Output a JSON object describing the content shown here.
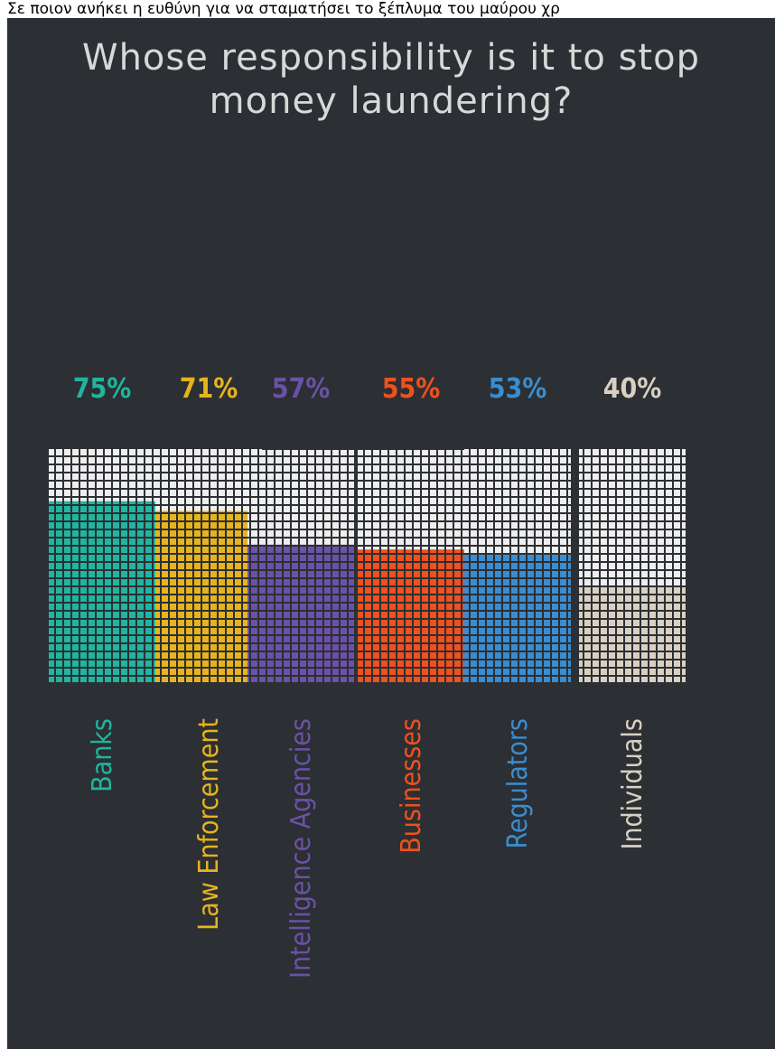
{
  "caption": "Σε ποιον ανήκει η ευθύνη για να σταματήσει το ξέπλυμα του μαύρου χρ",
  "chart_data": {
    "type": "bar",
    "title": "Whose responsibility is it to stop money laundering?",
    "categories": [
      "Banks",
      "Law Enforcement",
      "Intelligence Agencies",
      "Businesses",
      "Regulators",
      "Individuals"
    ],
    "values": [
      75,
      71,
      57,
      55,
      53,
      40
    ],
    "value_labels": [
      "75%",
      "71%",
      "57%",
      "55%",
      "53%",
      "40%"
    ],
    "colors": [
      "#1fb5a0",
      "#e6b41e",
      "#6a52a6",
      "#f0501e",
      "#3a8dd0",
      "#d9d0c2"
    ],
    "ylim": [
      0,
      100
    ]
  }
}
